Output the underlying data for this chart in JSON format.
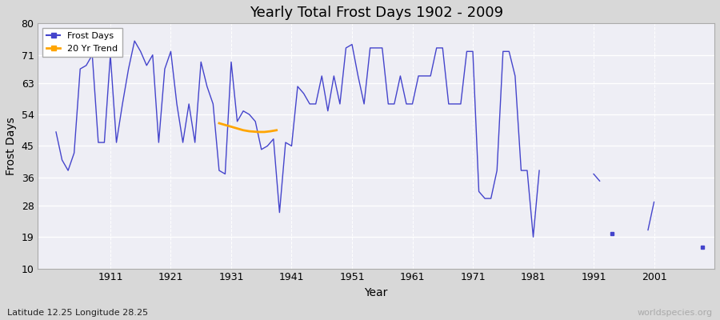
{
  "title": "Yearly Total Frost Days 1902 - 2009",
  "xlabel": "Year",
  "ylabel": "Frost Days",
  "subtitle": "Latitude 12.25 Longitude 28.25",
  "watermark": "worldspecies.org",
  "line_color": "#4444cc",
  "trend_color": "#FFA500",
  "fig_bg": "#d8d8d8",
  "plot_bg": "#eeeef5",
  "ylim": [
    10,
    80
  ],
  "yticks": [
    10,
    19,
    28,
    36,
    45,
    54,
    63,
    71,
    80
  ],
  "xticks": [
    1911,
    1921,
    1931,
    1941,
    1951,
    1961,
    1971,
    1981,
    1991,
    2001
  ],
  "xlim": [
    1899,
    2011
  ],
  "years": [
    1902,
    1903,
    1904,
    1905,
    1906,
    1907,
    1908,
    1909,
    1910,
    1911,
    1912,
    1913,
    1914,
    1915,
    1916,
    1917,
    1918,
    1919,
    1920,
    1921,
    1922,
    1923,
    1924,
    1925,
    1926,
    1927,
    1928,
    1929,
    1930,
    1931,
    1932,
    1933,
    1934,
    1935,
    1936,
    1937,
    1938,
    1939,
    1940,
    1941,
    1942,
    1943,
    1944,
    1945,
    1946,
    1947,
    1948,
    1949,
    1950,
    1951,
    1952,
    1953,
    1954,
    1955,
    1956,
    1957,
    1958,
    1959,
    1960,
    1961,
    1962,
    1963,
    1964,
    1965,
    1966,
    1967,
    1968,
    1969,
    1970,
    1971,
    1972,
    1973,
    1974,
    1975,
    1976,
    1977,
    1978,
    1979,
    1980,
    1981,
    1982,
    1983,
    1984,
    1985,
    1986,
    1987,
    1988,
    1989,
    1990,
    1991,
    1992,
    1993,
    1994,
    1995,
    1996,
    1997,
    1998,
    1999,
    2000,
    2001,
    2002,
    2003,
    2004,
    2005,
    2006,
    2007,
    2008,
    2009
  ],
  "frost_days": [
    49,
    41,
    38,
    43,
    67,
    68,
    71,
    46,
    46,
    71,
    46,
    57,
    67,
    75,
    72,
    68,
    71,
    46,
    67,
    72,
    57,
    46,
    57,
    46,
    69,
    62,
    57,
    38,
    37,
    69,
    52,
    55,
    54,
    52,
    44,
    45,
    47,
    26,
    46,
    45,
    62,
    60,
    57,
    57,
    65,
    55,
    65,
    57,
    73,
    74,
    65,
    57,
    73,
    73,
    73,
    57,
    57,
    65,
    57,
    57,
    65,
    65,
    65,
    73,
    73,
    57,
    57,
    57,
    72,
    72,
    32,
    30,
    30,
    38,
    72,
    72,
    65,
    38,
    38,
    19,
    38,
    null,
    null,
    null,
    null,
    null,
    null,
    null,
    null,
    37,
    35,
    null,
    20,
    null,
    null,
    null,
    null,
    null,
    21,
    29,
    null,
    null,
    null,
    null,
    null,
    null,
    null,
    16
  ],
  "trend_x": [
    1929.0,
    1930.0,
    1931.0,
    1932.0,
    1933.0,
    1934.0,
    1935.5,
    1936.5,
    1937.5,
    1938.5
  ],
  "trend_y": [
    51.5,
    51.0,
    50.5,
    50.0,
    49.5,
    49.2,
    49.0,
    49.0,
    49.2,
    49.5
  ]
}
